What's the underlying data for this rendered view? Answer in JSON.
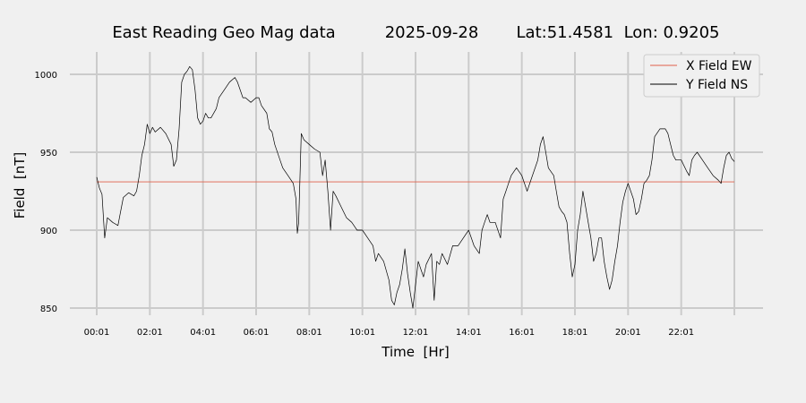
{
  "chart_data": {
    "type": "line",
    "title": {
      "name": "East Reading Geo Mag data",
      "date": "2025-09-28",
      "location": "Lat:51.4581  Lon: 0.9205"
    },
    "xlabel": "Time  [Hr]",
    "ylabel": "Field  [nT]",
    "x_tick_labels": [
      "00:01",
      "02:01",
      "04:01",
      "06:01",
      "08:01",
      "10:01",
      "12:01",
      "14:01",
      "16:01",
      "18:01",
      "20:01",
      "22:01"
    ],
    "x_range_hours": [
      0,
      24
    ],
    "ylim": [
      845,
      1015
    ],
    "y_ticks": [
      850,
      900,
      950,
      1000
    ],
    "grid": true,
    "legend_position": "top-right",
    "series": [
      {
        "name": "X Field EW",
        "color": "#e0604a",
        "points": [
          [
            0,
            931
          ],
          [
            24,
            931
          ]
        ]
      },
      {
        "name": "Y Field NS",
        "color": "#000000",
        "points": [
          [
            0.0,
            934
          ],
          [
            0.1,
            927
          ],
          [
            0.2,
            923
          ],
          [
            0.3,
            895
          ],
          [
            0.4,
            908
          ],
          [
            0.6,
            905
          ],
          [
            0.8,
            903
          ],
          [
            0.9,
            912
          ],
          [
            1.0,
            921
          ],
          [
            1.2,
            924
          ],
          [
            1.4,
            922
          ],
          [
            1.5,
            925
          ],
          [
            1.6,
            935
          ],
          [
            1.7,
            948
          ],
          [
            1.8,
            955
          ],
          [
            1.9,
            968
          ],
          [
            2.0,
            962
          ],
          [
            2.1,
            966
          ],
          [
            2.2,
            963
          ],
          [
            2.4,
            966
          ],
          [
            2.6,
            962
          ],
          [
            2.8,
            955
          ],
          [
            2.9,
            941
          ],
          [
            3.0,
            945
          ],
          [
            3.1,
            965
          ],
          [
            3.2,
            995
          ],
          [
            3.3,
            1000
          ],
          [
            3.4,
            1002
          ],
          [
            3.5,
            1005
          ],
          [
            3.6,
            1003
          ],
          [
            3.7,
            990
          ],
          [
            3.8,
            972
          ],
          [
            3.9,
            968
          ],
          [
            4.0,
            970
          ],
          [
            4.1,
            975
          ],
          [
            4.2,
            972
          ],
          [
            4.3,
            972
          ],
          [
            4.5,
            978
          ],
          [
            4.6,
            985
          ],
          [
            4.8,
            990
          ],
          [
            5.0,
            995
          ],
          [
            5.2,
            998
          ],
          [
            5.3,
            995
          ],
          [
            5.5,
            985
          ],
          [
            5.6,
            985
          ],
          [
            5.8,
            982
          ],
          [
            6.0,
            985
          ],
          [
            6.1,
            985
          ],
          [
            6.2,
            980
          ],
          [
            6.4,
            975
          ],
          [
            6.5,
            965
          ],
          [
            6.6,
            963
          ],
          [
            6.7,
            955
          ],
          [
            6.9,
            945
          ],
          [
            7.0,
            940
          ],
          [
            7.2,
            935
          ],
          [
            7.4,
            930
          ],
          [
            7.5,
            920
          ],
          [
            7.55,
            898
          ],
          [
            7.6,
            905
          ],
          [
            7.7,
            962
          ],
          [
            7.8,
            958
          ],
          [
            8.0,
            955
          ],
          [
            8.2,
            952
          ],
          [
            8.4,
            950
          ],
          [
            8.5,
            935
          ],
          [
            8.6,
            945
          ],
          [
            8.7,
            925
          ],
          [
            8.8,
            900
          ],
          [
            8.9,
            925
          ],
          [
            9.0,
            922
          ],
          [
            9.2,
            915
          ],
          [
            9.4,
            908
          ],
          [
            9.6,
            905
          ],
          [
            9.8,
            900
          ],
          [
            10.0,
            900
          ],
          [
            10.2,
            895
          ],
          [
            10.4,
            890
          ],
          [
            10.5,
            880
          ],
          [
            10.6,
            885
          ],
          [
            10.8,
            880
          ],
          [
            11.0,
            868
          ],
          [
            11.1,
            855
          ],
          [
            11.2,
            852
          ],
          [
            11.3,
            860
          ],
          [
            11.4,
            865
          ],
          [
            11.5,
            875
          ],
          [
            11.6,
            888
          ],
          [
            11.7,
            872
          ],
          [
            11.8,
            860
          ],
          [
            11.9,
            850
          ],
          [
            12.0,
            865
          ],
          [
            12.1,
            880
          ],
          [
            12.2,
            875
          ],
          [
            12.3,
            870
          ],
          [
            12.4,
            878
          ],
          [
            12.6,
            885
          ],
          [
            12.7,
            855
          ],
          [
            12.8,
            880
          ],
          [
            12.9,
            878
          ],
          [
            13.0,
            885
          ],
          [
            13.2,
            878
          ],
          [
            13.4,
            890
          ],
          [
            13.6,
            890
          ],
          [
            13.8,
            895
          ],
          [
            14.0,
            900
          ],
          [
            14.2,
            890
          ],
          [
            14.4,
            885
          ],
          [
            14.5,
            900
          ],
          [
            14.6,
            905
          ],
          [
            14.7,
            910
          ],
          [
            14.8,
            905
          ],
          [
            15.0,
            905
          ],
          [
            15.2,
            895
          ],
          [
            15.3,
            920
          ],
          [
            15.4,
            925
          ],
          [
            15.5,
            930
          ],
          [
            15.6,
            935
          ],
          [
            15.8,
            940
          ],
          [
            16.0,
            935
          ],
          [
            16.2,
            925
          ],
          [
            16.4,
            935
          ],
          [
            16.6,
            945
          ],
          [
            16.7,
            955
          ],
          [
            16.8,
            960
          ],
          [
            16.9,
            950
          ],
          [
            17.0,
            940
          ],
          [
            17.2,
            935
          ],
          [
            17.3,
            925
          ],
          [
            17.4,
            915
          ],
          [
            17.5,
            912
          ],
          [
            17.6,
            910
          ],
          [
            17.7,
            905
          ],
          [
            17.8,
            885
          ],
          [
            17.9,
            870
          ],
          [
            18.0,
            878
          ],
          [
            18.1,
            900
          ],
          [
            18.2,
            910
          ],
          [
            18.3,
            925
          ],
          [
            18.4,
            915
          ],
          [
            18.5,
            905
          ],
          [
            18.6,
            895
          ],
          [
            18.7,
            880
          ],
          [
            18.8,
            885
          ],
          [
            18.9,
            895
          ],
          [
            19.0,
            895
          ],
          [
            19.1,
            880
          ],
          [
            19.2,
            870
          ],
          [
            19.3,
            862
          ],
          [
            19.4,
            868
          ],
          [
            19.5,
            880
          ],
          [
            19.6,
            890
          ],
          [
            19.7,
            905
          ],
          [
            19.8,
            918
          ],
          [
            19.9,
            925
          ],
          [
            20.0,
            930
          ],
          [
            20.1,
            925
          ],
          [
            20.2,
            920
          ],
          [
            20.3,
            910
          ],
          [
            20.4,
            912
          ],
          [
            20.5,
            920
          ],
          [
            20.6,
            930
          ],
          [
            20.7,
            932
          ],
          [
            20.8,
            935
          ],
          [
            20.9,
            945
          ],
          [
            21.0,
            960
          ],
          [
            21.2,
            965
          ],
          [
            21.4,
            965
          ],
          [
            21.5,
            962
          ],
          [
            21.6,
            955
          ],
          [
            21.7,
            948
          ],
          [
            21.8,
            945
          ],
          [
            22.0,
            945
          ],
          [
            22.2,
            938
          ],
          [
            22.3,
            935
          ],
          [
            22.4,
            945
          ],
          [
            22.5,
            948
          ],
          [
            22.6,
            950
          ],
          [
            22.8,
            945
          ],
          [
            23.0,
            940
          ],
          [
            23.2,
            935
          ],
          [
            23.4,
            932
          ],
          [
            23.5,
            930
          ],
          [
            23.6,
            940
          ],
          [
            23.7,
            948
          ],
          [
            23.8,
            950
          ],
          [
            23.9,
            946
          ],
          [
            24.0,
            944
          ]
        ]
      }
    ]
  }
}
